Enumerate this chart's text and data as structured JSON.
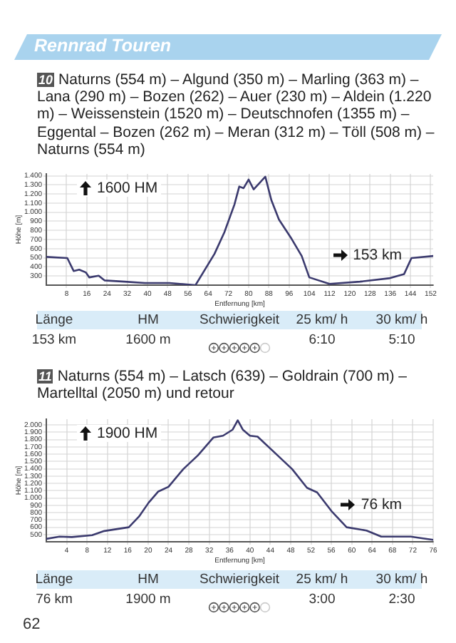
{
  "chart_data": [
    {
      "type": "line",
      "title": "Naturns (554 m) – Algund (350 m) – Marling (363 m) – Lana (290 m) – Bozen (262) – Auer (230 m) – Aldein (1.220 m) – Weissenstein (1520 m) – Deutschnofen (1355 m) – Eggental – Bozen (262 m) – Meran (312 m) – Töll (508 m) – Naturns (554 m)",
      "xlabel": "Entfernung [km]",
      "ylabel": "Höhe [m]",
      "x": [
        0,
        8.3,
        10.8,
        13,
        15.6,
        17,
        20.7,
        23,
        31,
        39,
        48.7,
        59,
        66.5,
        70.4,
        74.4,
        76.3,
        78,
        80,
        82,
        84.6,
        86.6,
        89,
        92,
        97,
        101,
        104,
        112,
        124,
        135.5,
        141.5,
        144.4,
        153
      ],
      "values": [
        510,
        497,
        355,
        370,
        340,
        285,
        304,
        252,
        238,
        224,
        224,
        200,
        543,
        779,
        1085,
        1282,
        1264,
        1358,
        1250,
        1330,
        1390,
        1132,
        920,
        708,
        520,
        285,
        214,
        238,
        275,
        322,
        497,
        520
      ],
      "color": "#3b3a6e",
      "xlim": [
        0,
        153
      ],
      "xticks": [
        8,
        16,
        24,
        32,
        40,
        48,
        56,
        64,
        72,
        80,
        88,
        96,
        104,
        112,
        120,
        128,
        136,
        144,
        152
      ],
      "ylim": [
        200,
        1420
      ],
      "yticks": [
        300,
        400,
        500,
        600,
        700,
        800,
        900,
        {
          "value": 1000,
          "label": "1.000"
        },
        {
          "value": 1100,
          "label": "1.100"
        },
        {
          "value": 1200,
          "label": "1.200"
        },
        {
          "value": 1300,
          "label": "1.300"
        },
        {
          "value": 1400,
          "label": "1.400"
        }
      ],
      "grid": true,
      "annotations": [
        "10",
        "1600 HM",
        "153 km",
        "Länge",
        "HM",
        "Schwierigkeit",
        "25 km/ h",
        "30 km/ h",
        "153 km",
        "1600 m",
        "6:10",
        "5:10",
        "Rennrad Touren"
      ]
    },
    {
      "type": "line",
      "title": "Naturns (554 m) – Latsch (639) – Goldrain (700 m) – Martelltal (2050 m) und retour",
      "xlabel": "Entfernung [km]",
      "ylabel": "Höhe [m]",
      "x": [
        0,
        2.6,
        5,
        9,
        11.4,
        16.2,
        18.2,
        20.1,
        22,
        24,
        26.9,
        29.8,
        32.8,
        34.7,
        36.6,
        37.6,
        38.6,
        40,
        41.5,
        45.4,
        48.3,
        51.2,
        53.2,
        56,
        59,
        62.9,
        65.8,
        71.6,
        73.5,
        76
      ],
      "values": [
        440,
        471,
        465,
        490,
        548,
        599,
        745,
        936,
        1089,
        1153,
        1395,
        1586,
        1828,
        1853,
        1936,
        2064,
        1936,
        1853,
        1841,
        1586,
        1395,
        1140,
        1076,
        822,
        599,
        554,
        471,
        471,
        452,
        427
      ],
      "color": "#3b3a6e",
      "xlim": [
        0,
        76
      ],
      "xticks": [
        4,
        8,
        12,
        16,
        20,
        24,
        28,
        32,
        36,
        40,
        44,
        48,
        52,
        56,
        60,
        64,
        68,
        72,
        76
      ],
      "ylim": [
        400,
        2080
      ],
      "yticks": [
        500,
        600,
        700,
        800,
        900,
        {
          "value": 1000,
          "label": "1.000"
        },
        {
          "value": 1100,
          "label": "1.100"
        },
        {
          "value": 1200,
          "label": "1.200"
        },
        {
          "value": 1300,
          "label": "1.300"
        },
        {
          "value": 1400,
          "label": "1.400"
        },
        {
          "value": 1500,
          "label": "1.500"
        },
        {
          "value": 1600,
          "label": "1.600"
        },
        {
          "value": 1700,
          "label": "1.700"
        },
        {
          "value": 1800,
          "label": "1.800"
        },
        {
          "value": 1900,
          "label": "1.900"
        },
        {
          "value": 2000,
          "label": "2.000"
        }
      ],
      "grid": true,
      "annotations": [
        "11",
        "1900 HM",
        "76 km",
        "Länge",
        "HM",
        "Schwierigkeit",
        "25 km/ h",
        "30 km/ h",
        "76 km",
        "1900 m",
        "3:00",
        "2:30",
        "62"
      ]
    }
  ]
}
